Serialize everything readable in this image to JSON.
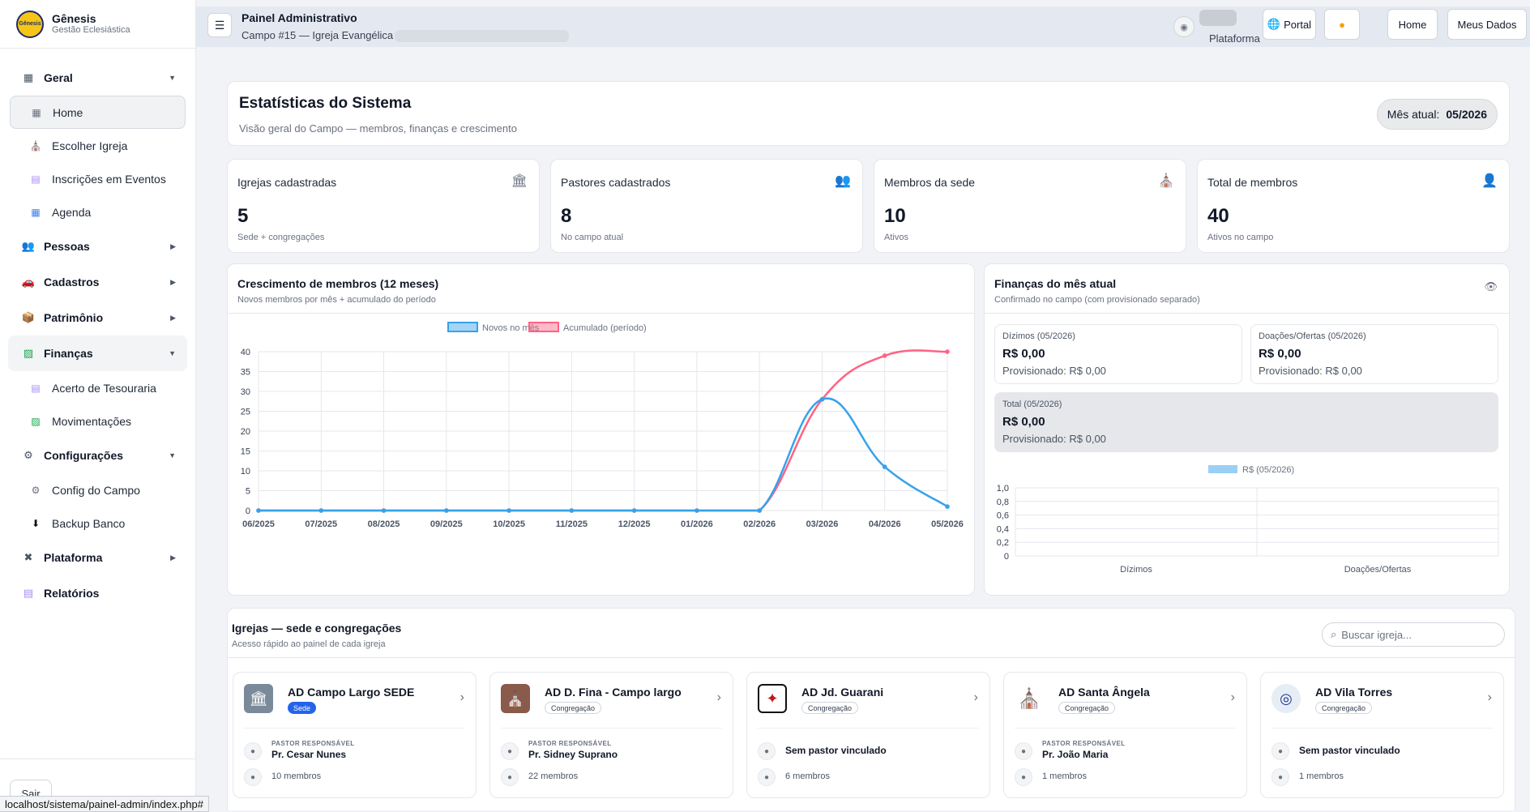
{
  "brand": {
    "name": "Gênesis",
    "subtitle": "Gestão Eclesiástica",
    "logo_text": "Gênesis"
  },
  "sidebar": {
    "groups": [
      {
        "label": "Geral",
        "icon": "grid-icon"
      },
      {
        "label": "Pessoas",
        "icon": "people-icon"
      },
      {
        "label": "Cadastros",
        "icon": "car-icon"
      },
      {
        "label": "Patrimônio",
        "icon": "box-icon"
      },
      {
        "label": "Finanças",
        "icon": "chart-icon"
      },
      {
        "label": "Configurações",
        "icon": "gear-icon"
      },
      {
        "label": "Plataforma",
        "icon": "tools-icon"
      },
      {
        "label": "Relatórios",
        "icon": "report-icon"
      }
    ],
    "items": {
      "home": "Home",
      "escolher_igreja": "Escolher Igreja",
      "inscricoes": "Inscrições em Eventos",
      "agenda": "Agenda",
      "acerto": "Acerto de Tesouraria",
      "movimentacoes": "Movimentações",
      "config_campo": "Config do Campo",
      "backup": "Backup Banco"
    },
    "logout": "Sair"
  },
  "statusbar": "localhost/sistema/painel-admin/index.php#",
  "topbar": {
    "title": "Painel Administrativo",
    "subtitle": "Campo #15 — Igreja Evangélica",
    "platform_label": "Plataforma",
    "buttons": {
      "portal": "Portal",
      "home": "Home",
      "meus_dados": "Meus Dados"
    }
  },
  "hero": {
    "title": "Estatísticas do Sistema",
    "subtitle": "Visão geral do Campo — membros, finanças e crescimento",
    "month_label": "Mês atual:",
    "month_value": "05/2026"
  },
  "stats": [
    {
      "label": "Igrejas cadastradas",
      "value": "5",
      "note": "Sede + congregações"
    },
    {
      "label": "Pastores cadastrados",
      "value": "8",
      "note": "No campo atual"
    },
    {
      "label": "Membros da sede",
      "value": "10",
      "note": "Ativos"
    },
    {
      "label": "Total de membros",
      "value": "40",
      "note": "Ativos no campo"
    }
  ],
  "growth": {
    "title": "Crescimento de membros (12 meses)",
    "subtitle": "Novos membros por mês + acumulado do período"
  },
  "finance": {
    "title": "Finanças do mês atual",
    "subtitle": "Confirmado no campo (com provisionado separado)",
    "dizimos": {
      "label": "Dízimos (05/2026)",
      "value": "R$ 0,00",
      "prov": "Provisionado: R$ 0,00"
    },
    "doacoes": {
      "label": "Doações/Ofertas (05/2026)",
      "value": "R$ 0,00",
      "prov": "Provisionado: R$ 0,00"
    },
    "total": {
      "label": "Total (05/2026)",
      "value": "R$ 0,00",
      "prov": "Provisionado: R$ 0,00"
    }
  },
  "churches_section": {
    "title": "Igrejas — sede e congregações",
    "subtitle": "Acesso rápido ao painel de cada igreja",
    "search_placeholder": "Buscar igreja...",
    "pastor_caption": "PASTOR RESPONSÁVEL"
  },
  "churches": [
    {
      "name": "AD Campo Largo SEDE",
      "badge": "Sede",
      "pastor": "Pr. Cesar Nunes",
      "members": "10 membros"
    },
    {
      "name": "AD D. Fina - Campo largo",
      "badge": "Congregação",
      "pastor": "Pr. Sidney Suprano",
      "members": "22 membros"
    },
    {
      "name": "AD Jd. Guarani",
      "badge": "Congregação",
      "pastor": "Sem pastor vinculado",
      "members": "6 membros"
    },
    {
      "name": "AD Santa Ângela",
      "badge": "Congregação",
      "pastor": "Pr. João Maria",
      "members": "1 membros"
    },
    {
      "name": "AD Vila Torres",
      "badge": "Congregação",
      "pastor": "Sem pastor vinculado",
      "members": "1 membros"
    }
  ],
  "chart_data": [
    {
      "type": "line",
      "x": [
        "06/2025",
        "07/2025",
        "08/2025",
        "09/2025",
        "10/2025",
        "11/2025",
        "12/2025",
        "01/2026",
        "02/2026",
        "03/2026",
        "04/2026",
        "05/2026"
      ],
      "series": [
        {
          "name": "Novos no mês",
          "color": "#36a2eb",
          "values": [
            0,
            0,
            0,
            0,
            0,
            0,
            0,
            0,
            0,
            28,
            11,
            1
          ]
        },
        {
          "name": "Acumulado (período)",
          "color": "#ff6384",
          "values": [
            0,
            0,
            0,
            0,
            0,
            0,
            0,
            0,
            0,
            28,
            39,
            40
          ]
        }
      ],
      "yticks": [
        "0",
        "5",
        "10",
        "15",
        "20",
        "25",
        "30",
        "35",
        "40"
      ],
      "ylim": [
        0,
        40
      ],
      "legend": "top",
      "grid": true
    },
    {
      "type": "bar",
      "categories": [
        "Dízimos",
        "Doações/Ofertas"
      ],
      "series": [
        {
          "name": "R$ (05/2026)",
          "color": "#9ad0f5",
          "values": [
            0,
            0
          ]
        }
      ],
      "yticks": [
        "0",
        "0,2",
        "0,4",
        "0,6",
        "0,8",
        "1,0"
      ],
      "ylim": [
        0,
        1
      ],
      "legend": "top",
      "grid": true
    }
  ]
}
